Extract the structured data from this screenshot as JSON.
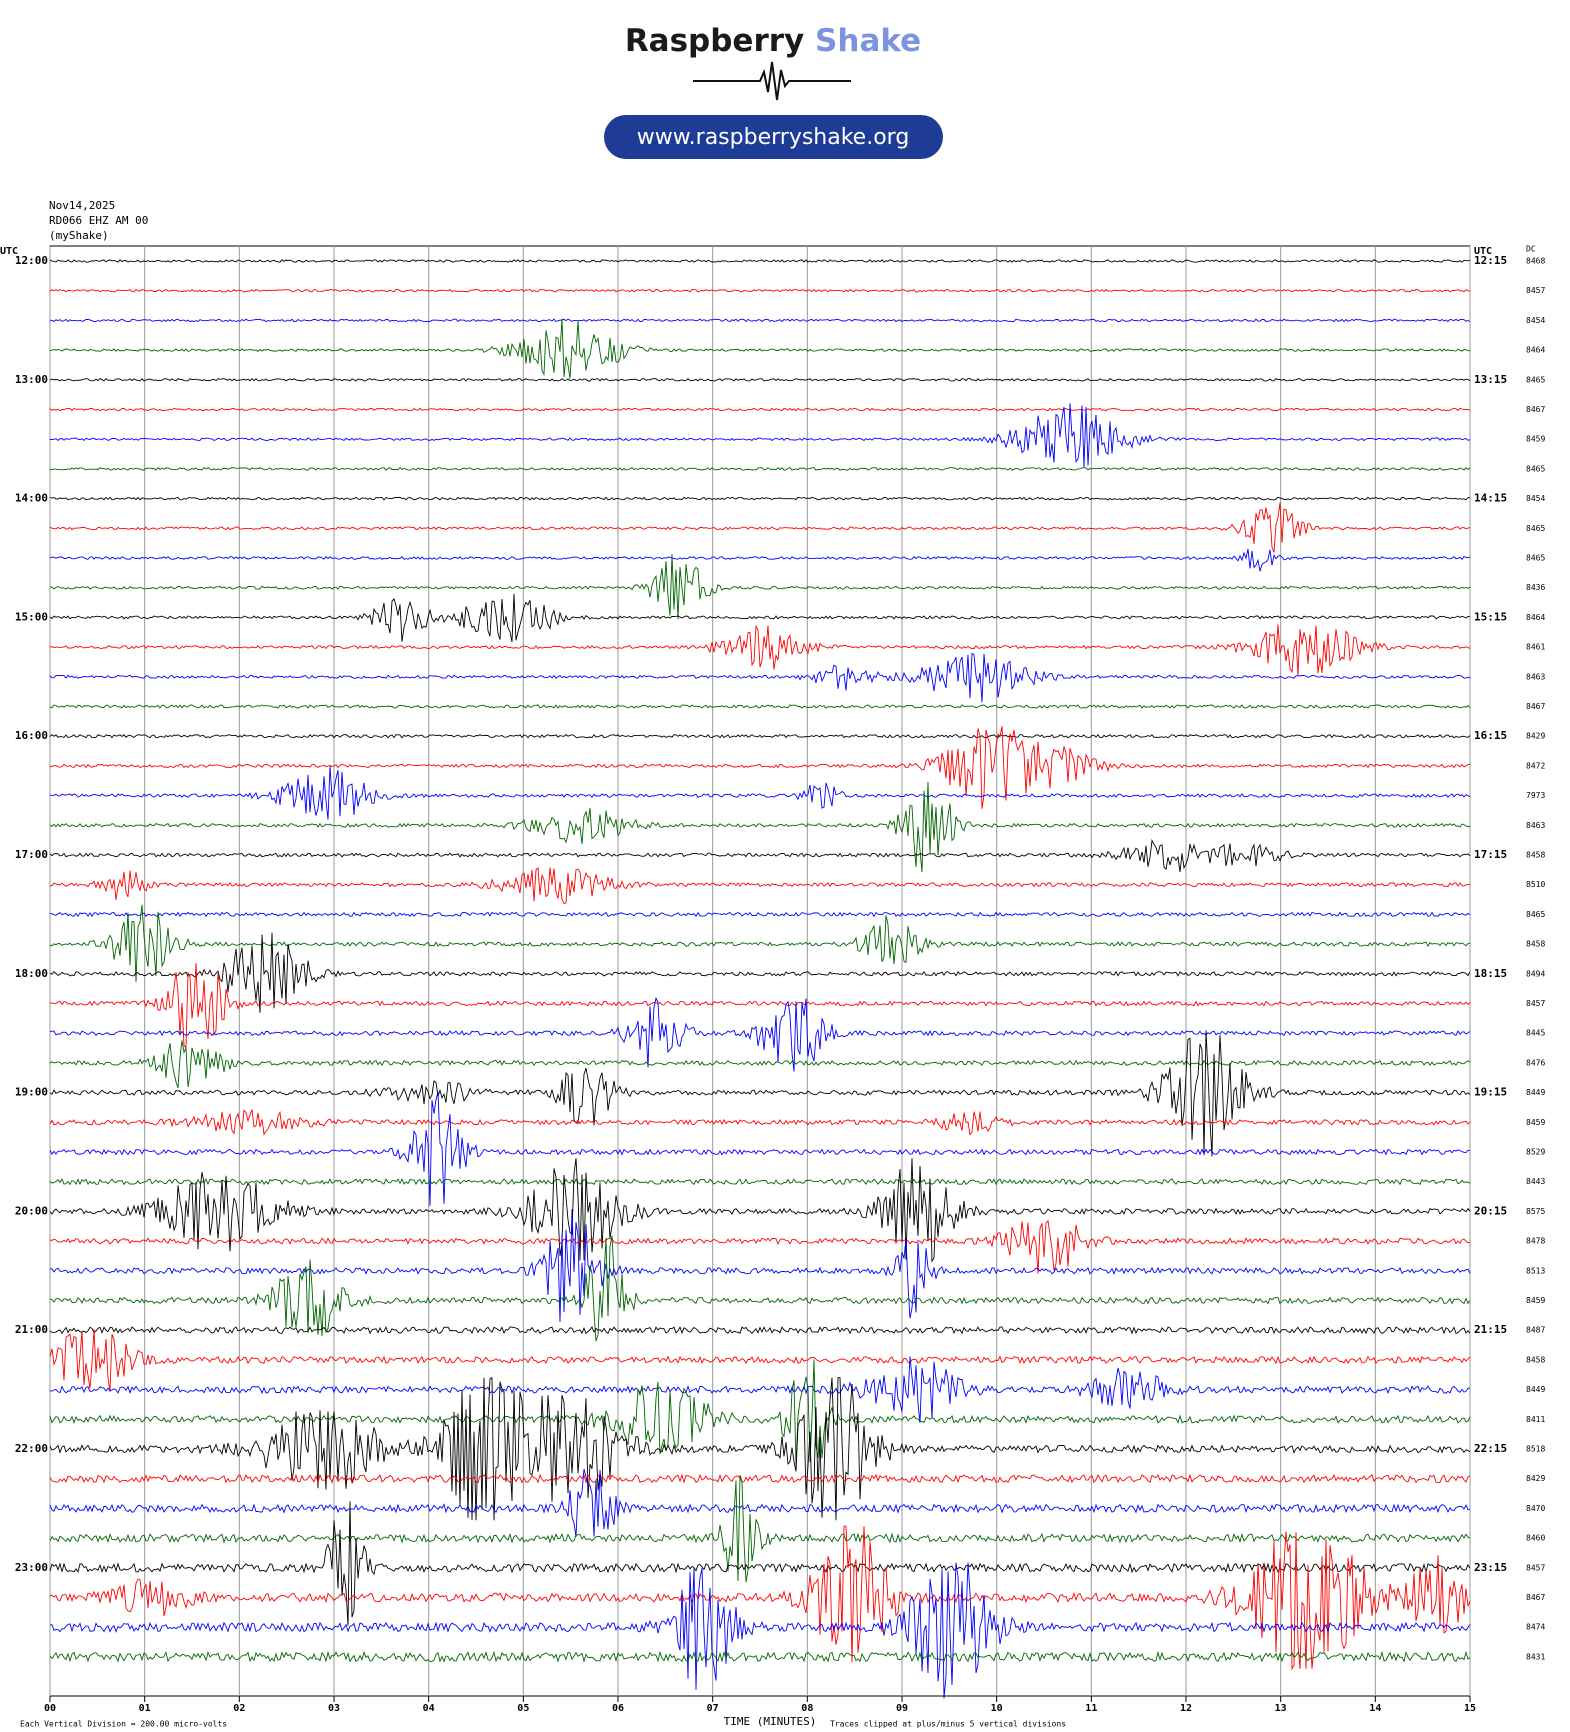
{
  "header": {
    "brand": "Raspberry",
    "brand_accent": "Shake",
    "url": "www.raspberryshake.org"
  },
  "chart_data": {
    "type": "helicorder",
    "date": "Nov14,2025",
    "station": "RD066 EHZ AM 00",
    "network": "(myShake)",
    "left_axis_title": "UTC",
    "right_axis_title": "UTC",
    "dc_title": "DC",
    "row_labels_left": [
      "12:00",
      "13:00",
      "14:00",
      "15:00",
      "16:00",
      "17:00",
      "18:00",
      "19:00",
      "20:00",
      "21:00",
      "22:00",
      "23:00"
    ],
    "row_labels_right": [
      "12:15",
      "13:15",
      "14:15",
      "15:15",
      "16:15",
      "17:15",
      "18:15",
      "19:15",
      "20:15",
      "21:15",
      "22:15",
      "23:15"
    ],
    "dc_values": [
      "8468",
      "8457",
      "8454",
      "8464",
      "8465",
      "8467",
      "8459",
      "8465",
      "8454",
      "8465",
      "8465",
      "8436",
      "8464",
      "8461",
      "8463",
      "8467",
      "8429",
      "8472",
      "7973",
      "8463",
      "8458",
      "8510",
      "8465",
      "8458",
      "8494",
      "8457",
      "8445",
      "8476",
      "8449",
      "8459",
      "8529",
      "8443",
      "8575",
      "8478",
      "8513",
      "8459",
      "8487",
      "8458",
      "8449",
      "8411",
      "8518",
      "8429",
      "8470",
      "8460",
      "8457",
      "8467",
      "8474",
      "8431"
    ],
    "colors": [
      "#000000",
      "#ff0000",
      "#0000ff",
      "#006400"
    ],
    "xlim": [
      0,
      15
    ],
    "xticks": [
      {
        "value": 0,
        "label": "00"
      },
      {
        "value": 1,
        "label": "01"
      },
      {
        "value": 2,
        "label": "02"
      },
      {
        "value": 3,
        "label": "03"
      },
      {
        "value": 4,
        "label": "04"
      },
      {
        "value": 5,
        "label": "05"
      },
      {
        "value": 6,
        "label": "06"
      },
      {
        "value": 7,
        "label": "07"
      },
      {
        "value": 8,
        "label": "08"
      },
      {
        "value": 9,
        "label": "09"
      },
      {
        "value": 10,
        "label": "10"
      },
      {
        "value": 11,
        "label": "11"
      },
      {
        "value": 12,
        "label": "12"
      },
      {
        "value": 13,
        "label": "13"
      },
      {
        "value": 14,
        "label": "14"
      },
      {
        "value": 15,
        "label": "15"
      }
    ],
    "x_axis_title": "TIME (MINUTES)",
    "scale_note": "Each Vertical Division =  200.00 micro-volts",
    "clip_note": "Traces clipped at plus/minus 5 vertical divisions"
  }
}
